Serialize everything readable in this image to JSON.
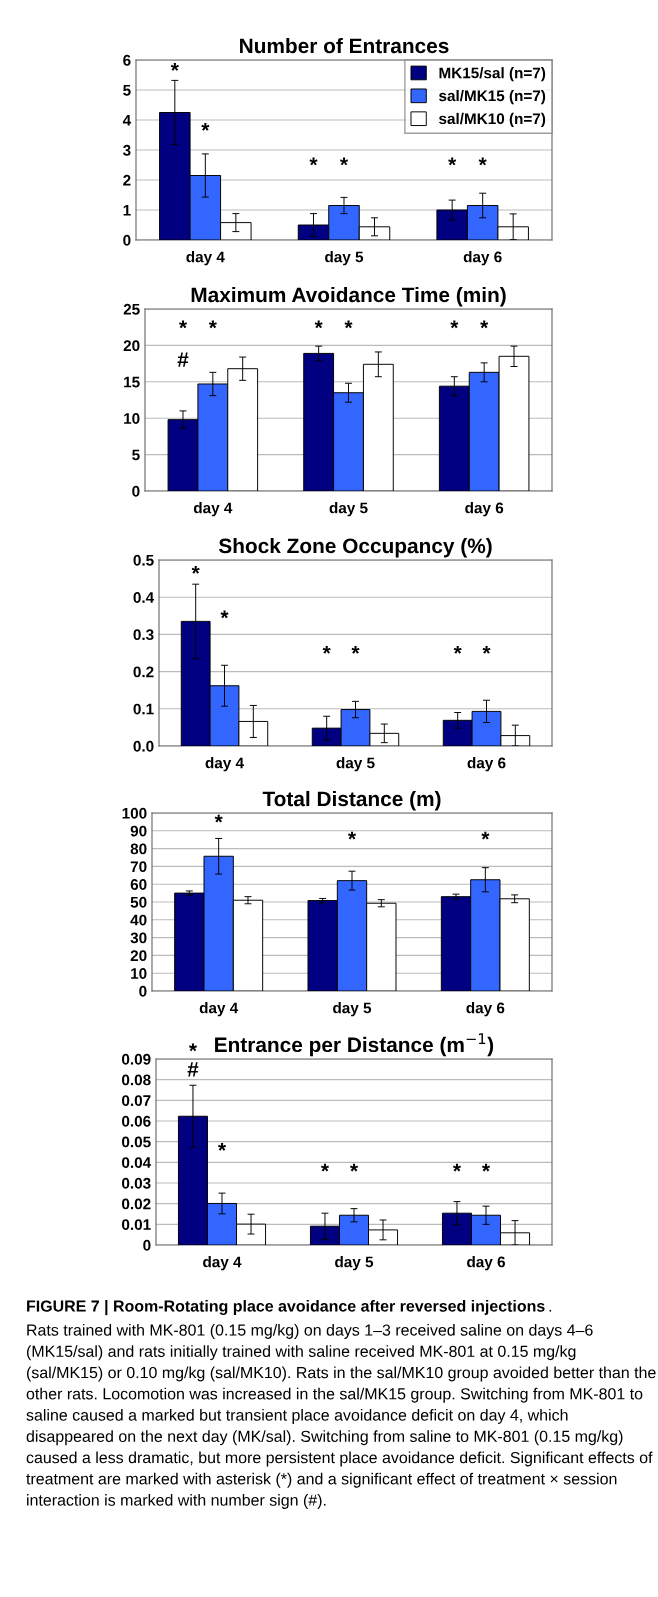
{
  "chart_data": [
    {
      "type": "bar",
      "title": "Number of Entrances",
      "categories": [
        "day 4",
        "day 5",
        "day 6"
      ],
      "ylim": [
        0,
        6
      ],
      "yticks": [
        0,
        1,
        2,
        3,
        4,
        5,
        6
      ],
      "grid": "y",
      "legend": "top right",
      "series": [
        {
          "name": "MK15/sal (n=7)",
          "color": "#000080",
          "values": [
            4.25,
            0.5,
            1.0
          ],
          "errors": [
            1.07,
            0.38,
            0.33
          ]
        },
        {
          "name": "sal/MK15 (n=7)",
          "color": "#3366ff",
          "values": [
            2.15,
            1.15,
            1.15
          ],
          "errors": [
            0.72,
            0.27,
            0.41
          ]
        },
        {
          "name": "sal/MK10 (n=7)",
          "color": "#ffffff",
          "values": [
            0.58,
            0.44,
            0.44
          ],
          "errors": [
            0.3,
            0.3,
            0.43
          ]
        }
      ],
      "annotations": [
        "*",
        "*",
        "*",
        "*",
        "*",
        "*"
      ]
    },
    {
      "type": "bar",
      "title": "Maximum Avoidance Time (min)",
      "categories": [
        "day 4",
        "day 5",
        "day 6"
      ],
      "ylim": [
        0,
        25
      ],
      "yticks": [
        0,
        5,
        10,
        15,
        20,
        25
      ],
      "grid": "y",
      "series": [
        {
          "color": "#000080",
          "values": [
            9.8,
            18.9,
            14.4
          ],
          "errors": [
            1.2,
            1.0,
            1.3
          ]
        },
        {
          "color": "#3366ff",
          "values": [
            14.7,
            13.5,
            16.3
          ],
          "errors": [
            1.6,
            1.3,
            1.3
          ]
        },
        {
          "color": "#ffffff",
          "values": [
            16.8,
            17.4,
            18.5
          ],
          "errors": [
            1.6,
            1.7,
            1.4
          ]
        }
      ],
      "annotations": [
        "*",
        "*",
        "#",
        "*",
        "*",
        "*",
        "*"
      ]
    },
    {
      "type": "bar",
      "title": "Shock Zone Occupancy (%)",
      "categories": [
        "day 4",
        "day 5",
        "day 6"
      ],
      "ylim": [
        0,
        0.5
      ],
      "yticks": [
        {
          "value": 0,
          "label": "0.0"
        },
        0.1,
        0.2,
        0.3,
        0.4,
        0.5
      ],
      "grid": "y",
      "series": [
        {
          "color": "#000080",
          "values": [
            0.335,
            0.048,
            0.069
          ],
          "errors": [
            0.1,
            0.032,
            0.021
          ]
        },
        {
          "color": "#3366ff",
          "values": [
            0.162,
            0.098,
            0.093
          ],
          "errors": [
            0.055,
            0.022,
            0.03
          ]
        },
        {
          "color": "#ffffff",
          "values": [
            0.066,
            0.034,
            0.028
          ],
          "errors": [
            0.043,
            0.025,
            0.028
          ]
        }
      ],
      "annotations": [
        "*",
        "*",
        "*",
        "*",
        "*",
        "*"
      ]
    },
    {
      "type": "bar",
      "title": "Total Distance (m)",
      "categories": [
        "day 4",
        "day 5",
        "day 6"
      ],
      "ylim": [
        0,
        100
      ],
      "yticks": [
        0,
        10,
        20,
        30,
        40,
        50,
        60,
        70,
        80,
        90,
        100
      ],
      "grid": "y",
      "series": [
        {
          "color": "#000080",
          "values": [
            55,
            50.8,
            53
          ],
          "errors": [
            1.2,
            1.2,
            1.4
          ]
        },
        {
          "color": "#3366ff",
          "values": [
            75.7,
            62,
            62.5
          ],
          "errors": [
            10,
            5.3,
            6.8
          ]
        },
        {
          "color": "#ffffff",
          "values": [
            51,
            49.3,
            51.8
          ],
          "errors": [
            2,
            2,
            2.2
          ]
        }
      ],
      "annotations": [
        "*",
        "*",
        "*"
      ]
    },
    {
      "type": "bar",
      "title": "Entrance per Distance (m$^{−1}$)",
      "categories": [
        "day 4",
        "day 5",
        "day 6"
      ],
      "ylim": [
        0,
        0.09
      ],
      "yticks": [
        0,
        0.01,
        0.02,
        0.03,
        0.04,
        0.05,
        0.06,
        0.07,
        0.08,
        0.09
      ],
      "grid": "y",
      "series": [
        {
          "color": "#000080",
          "values": [
            0.0623,
            0.0091,
            0.0154
          ],
          "errors": [
            0.015,
            0.0063,
            0.0056
          ]
        },
        {
          "color": "#3366ff",
          "values": [
            0.0201,
            0.0144,
            0.0144
          ],
          "errors": [
            0.005,
            0.0032,
            0.0044
          ]
        },
        {
          "color": "#ffffff",
          "values": [
            0.0101,
            0.0073,
            0.0059
          ],
          "errors": [
            0.0048,
            0.0048,
            0.0059
          ]
        }
      ],
      "annotations": [
        "*",
        "#",
        "*",
        "*",
        "*",
        "*",
        "*",
        "FIGURE 7 | Room-Rotating place avoidance after reversed injections",
        ".",
        "Rats trained with MK-801 (0.15 mg/kg) on days 1–3 received saline on days 4–6 (MK15/sal) and rats initially trained with saline received MK-801 at 0.15 mg/kg (sal/MK15) or 0.10 mg/kg (sal/MK10). Rats in the sal/MK10 group avoided better than the other rats. Locomotion was increased in the sal/MK15 group. Switching from MK-801 to saline caused a marked but transient place avoidance deficit on day 4, which disappeared on the next day (MK/sal). Switching from saline to MK-801 (0.15 mg/kg) caused a less dramatic, but more persistent place avoidance deficit. Significant effects of treatment are marked with asterisk (*) and a significant effect of treatment × session interaction is marked with number sign (#)."
      ]
    }
  ]
}
